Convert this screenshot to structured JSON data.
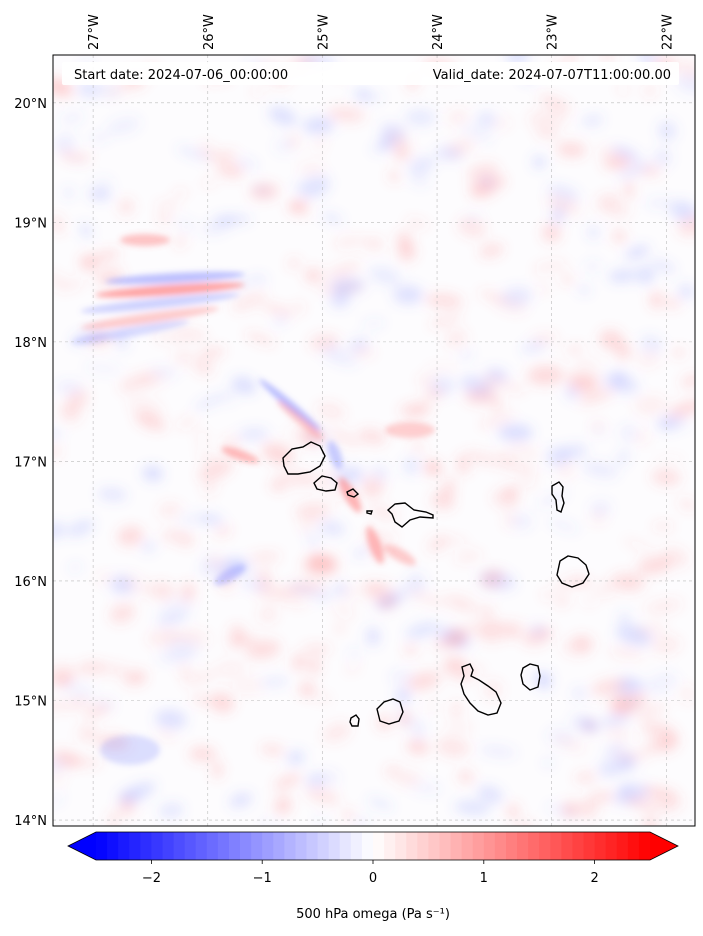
{
  "header": {
    "start_date": "Start date: 2024-07-06_00:00:00",
    "valid_date": "Valid_date: 2024-07-07T11:00:00.00"
  },
  "map": {
    "lon_range": [
      -27.35,
      -21.75
    ],
    "lat_range": [
      13.95,
      20.4
    ],
    "lon_ticks": [
      {
        "value": -27,
        "label": "27°W"
      },
      {
        "value": -26,
        "label": "26°W"
      },
      {
        "value": -25,
        "label": "25°W"
      },
      {
        "value": -24,
        "label": "24°W"
      },
      {
        "value": -23,
        "label": "23°W"
      },
      {
        "value": -22,
        "label": "22°W"
      }
    ],
    "lat_ticks": [
      {
        "value": 20,
        "label": "20°N"
      },
      {
        "value": 19,
        "label": "19°N"
      },
      {
        "value": 18,
        "label": "18°N"
      },
      {
        "value": 17,
        "label": "17°N"
      },
      {
        "value": 16,
        "label": "16°N"
      },
      {
        "value": 15,
        "label": "15°N"
      },
      {
        "value": 14,
        "label": "14°N"
      }
    ],
    "gridlines": true,
    "islands": [
      "Santo Antão",
      "São Vicente",
      "Santa Luzia",
      "Branco",
      "São Nicolau",
      "Sal",
      "Boa Vista",
      "Santiago",
      "Maio",
      "Fogo",
      "Brava"
    ]
  },
  "colorbar": {
    "label": "500 hPa omega (Pa s⁻¹)",
    "ticks": [
      {
        "value": -2,
        "label": "−2"
      },
      {
        "value": -1,
        "label": "−1"
      },
      {
        "value": 0,
        "label": "0"
      },
      {
        "value": 1,
        "label": "1"
      },
      {
        "value": 2,
        "label": "2"
      }
    ],
    "range": [
      -2.5,
      2.5
    ],
    "colormap": "bwr",
    "extend": "both",
    "colors": {
      "negative": "#0000ff",
      "zero": "#ffffff",
      "positive": "#ff0000"
    }
  }
}
